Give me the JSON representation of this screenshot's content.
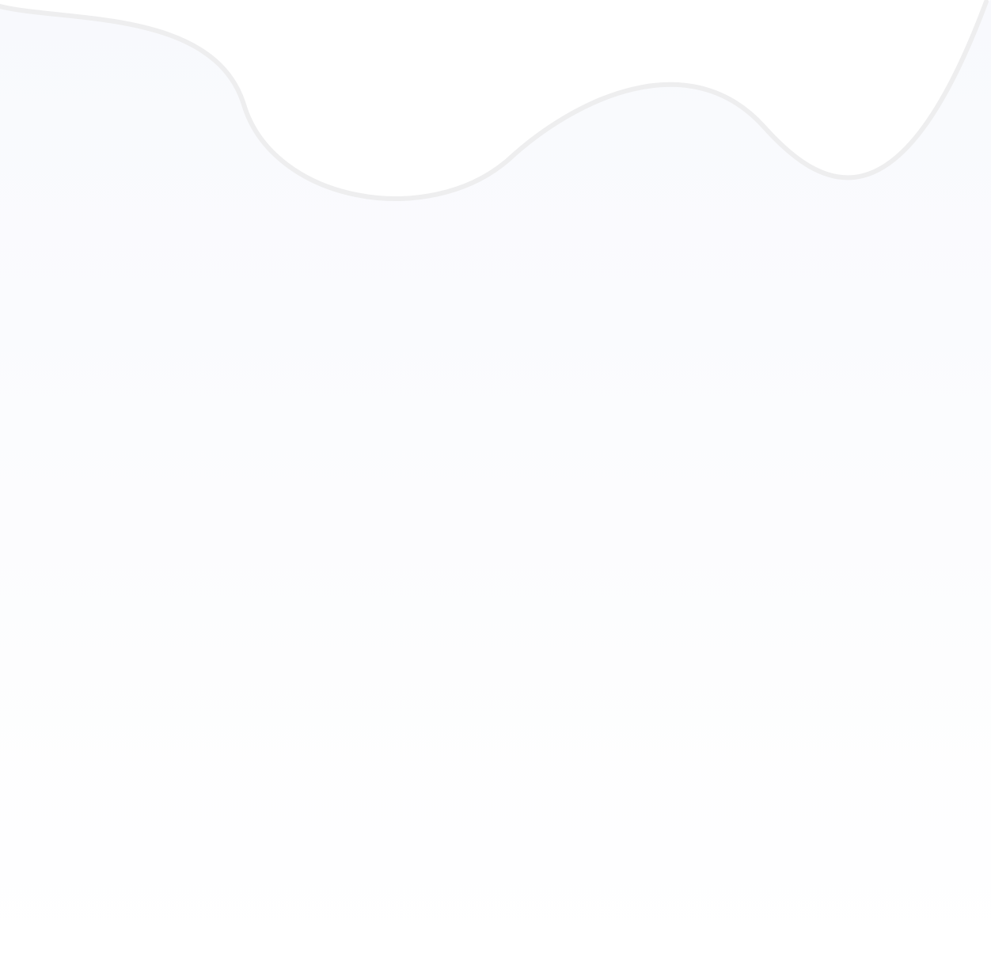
{
  "colors": {
    "background": "#ffffff",
    "fill_top": "#f8f9fd",
    "fill_bottom": "#ffffff",
    "stroke": "#eeeeef"
  }
}
